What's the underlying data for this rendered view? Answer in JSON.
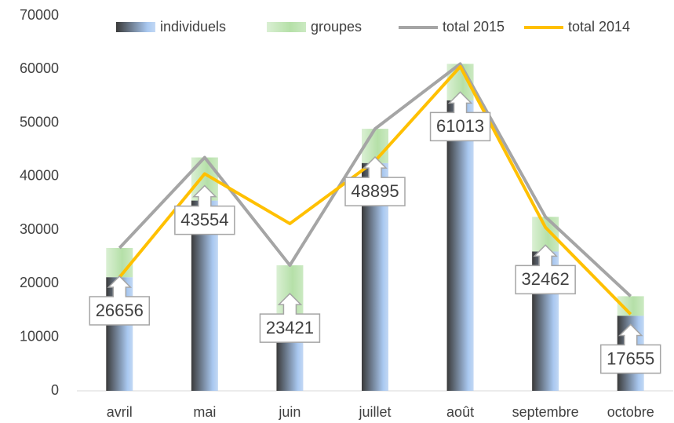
{
  "chart_data": {
    "type": "bar+line",
    "categories": [
      "avril",
      "mai",
      "juin",
      "juillet",
      "août",
      "septembre",
      "octobre"
    ],
    "series": [
      {
        "name": "individuels",
        "color": "#a9c8f0",
        "kind": "bar",
        "values": [
          21200,
          35500,
          9500,
          42500,
          54200,
          26000,
          14000
        ]
      },
      {
        "name": "groupes",
        "color": "#b5e0a8",
        "kind": "bar",
        "values": [
          5456,
          8054,
          13921,
          6395,
          6813,
          6462,
          3655
        ]
      },
      {
        "name": "total 2015",
        "color": "#a5a5a5",
        "kind": "line",
        "values": [
          26656,
          43554,
          23421,
          48895,
          61013,
          32462,
          17655
        ]
      },
      {
        "name": "total 2014",
        "color": "#ffc000",
        "kind": "line",
        "values": [
          21200,
          40500,
          31200,
          42900,
          60500,
          30500,
          14300
        ]
      }
    ],
    "ylim": [
      0,
      70000
    ],
    "yticks": [
      0,
      10000,
      20000,
      30000,
      40000,
      50000,
      60000,
      70000
    ],
    "grid": false
  }
}
